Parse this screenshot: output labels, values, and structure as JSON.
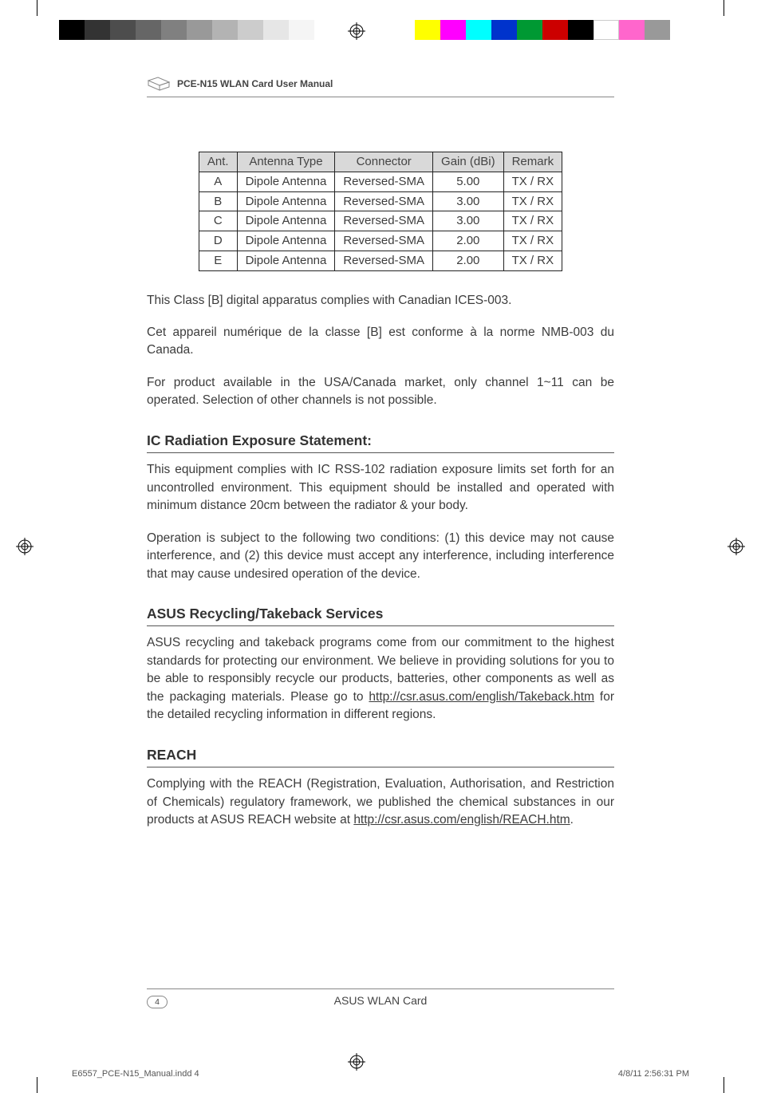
{
  "crop_color": "#000000",
  "colorbars": {
    "left": [
      "#000000",
      "#333333",
      "#4d4d4d",
      "#666666",
      "#808080",
      "#999999",
      "#b3b3b3",
      "#cccccc",
      "#e6e6e6",
      "#f5f5f5"
    ],
    "right": [
      "#ffff00",
      "#ff00ff",
      "#00ffff",
      "#0033cc",
      "#009933",
      "#cc0000",
      "#000000",
      "#ffffff",
      "#ff66cc",
      "#999999"
    ]
  },
  "header": {
    "title": "PCE-N15 WLAN Card User Manual"
  },
  "table": {
    "headers": [
      "Ant.",
      "Antenna Type",
      "Connector",
      "Gain (dBi)",
      "Remark"
    ],
    "rows": [
      [
        "A",
        "Dipole Antenna",
        "Reversed-SMA",
        "5.00",
        "TX / RX"
      ],
      [
        "B",
        "Dipole Antenna",
        "Reversed-SMA",
        "3.00",
        "TX / RX"
      ],
      [
        "C",
        "Dipole Antenna",
        "Reversed-SMA",
        "3.00",
        "TX / RX"
      ],
      [
        "D",
        "Dipole Antenna",
        "Reversed-SMA",
        "2.00",
        "TX / RX"
      ],
      [
        "E",
        "Dipole Antenna",
        "Reversed-SMA",
        "2.00",
        "TX / RX"
      ]
    ]
  },
  "para1": "This Class [B] digital apparatus complies with Canadian ICES-003.",
  "para2": "Cet appareil numérique de la classe [B] est conforme à la norme NMB-003 du Canada.",
  "para3": "For product available in the USA/Canada market, only channel 1~11 can be operated. Selection of other channels is not possible.",
  "h_ic": "IC Radiation Exposure Statement:",
  "ic_p1": "This equipment complies with IC RSS-102 radiation exposure limits set forth for an uncontrolled environment. This equipment should be installed and operated with minimum distance 20cm between the radiator & your body.",
  "ic_p2": "Operation is subject to the following two conditions: (1) this device may not cause interference, and (2) this device must accept any interference, including interference that may cause undesired operation of the device.",
  "h_recycle": "ASUS Recycling/Takeback Services",
  "recycle_pre": "ASUS recycling and takeback programs come from our commitment to the highest standards for protecting our environment. We believe in providing solutions for you to be able to responsibly recycle our products, batteries, other components as well as the packaging materials. Please go to ",
  "recycle_link": "http://csr.asus.com/english/Takeback.htm",
  "recycle_post": " for the detailed recycling information in different regions.",
  "h_reach": "REACH",
  "reach_pre": "Complying with the REACH (Registration, Evaluation, Authorisation, and Restriction of Chemicals) regulatory framework, we published the chemical substances in our products at ASUS REACH website at ",
  "reach_link": "http://csr.asus.com/english/REACH.htm",
  "reach_post": ".",
  "footer_text": "ASUS WLAN Card",
  "page_number": "4",
  "slug_left": "E6557_PCE-N15_Manual.indd   4",
  "slug_right": "4/8/11   2:56:31 PM"
}
